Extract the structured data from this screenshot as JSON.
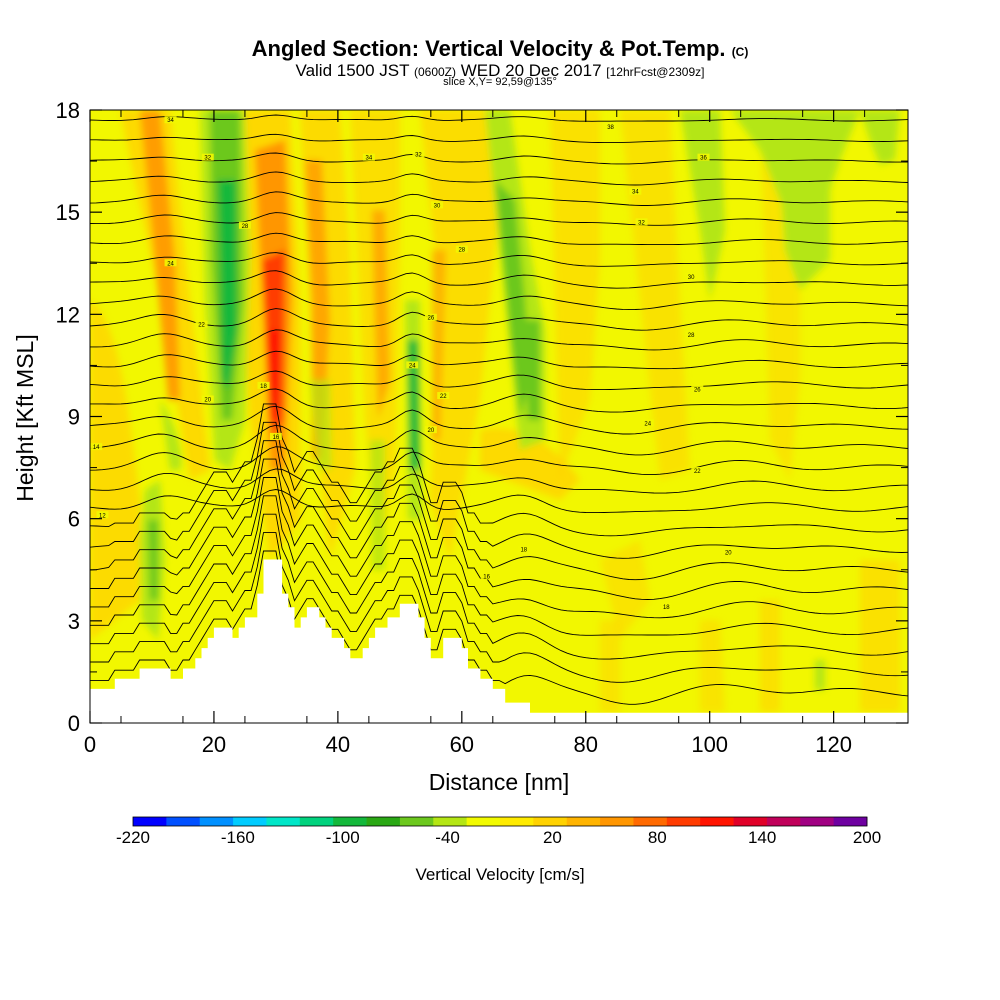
{
  "title": {
    "main": "Angled Section: Vertical Velocity & Pot.Temp.",
    "main_unit": "(C)",
    "valid_prefix": "Valid 1500 JST",
    "valid_utc": "(0600Z)",
    "valid_date": "WED 20 Dec 2017",
    "forecast": "[12hrFcst@2309z]",
    "slice": "slice X,Y= 92,59@135°"
  },
  "chart_data": {
    "type": "heatmap",
    "xlabel": "Distance [nm]",
    "ylabel": "Height [Kft MSL]",
    "xlim": [
      0,
      132
    ],
    "ylim": [
      0,
      18
    ],
    "x_ticks": [
      0,
      20,
      40,
      60,
      80,
      100,
      120
    ],
    "y_ticks": [
      0,
      3,
      6,
      9,
      12,
      15,
      18
    ],
    "colorbar": {
      "title": "Vertical Velocity [cm/s]",
      "labels": [
        "-220",
        "-160",
        "-100",
        "-40",
        "20",
        "80",
        "140",
        "200"
      ],
      "colors": [
        "#0000ff",
        "#0050ff",
        "#0090ff",
        "#00ccff",
        "#00e6c8",
        "#00d27d",
        "#13b83b",
        "#2aa814",
        "#6cc81e",
        "#b4e614",
        "#f2fb00",
        "#ffeb00",
        "#ffd200",
        "#ffb400",
        "#ff9600",
        "#ff6a00",
        "#ff3c00",
        "#ff1400",
        "#e00028",
        "#c0005a",
        "#a00082",
        "#6e00a0"
      ]
    },
    "background_color": "#f2f700",
    "terrain_profile": [
      [
        0,
        1.0
      ],
      [
        4,
        1.0
      ],
      [
        4,
        1.3
      ],
      [
        8,
        1.3
      ],
      [
        8,
        1.6
      ],
      [
        13,
        1.6
      ],
      [
        13,
        1.3
      ],
      [
        15,
        1.3
      ],
      [
        15,
        1.6
      ],
      [
        17,
        1.6
      ],
      [
        17,
        1.9
      ],
      [
        18,
        1.9
      ],
      [
        18,
        2.2
      ],
      [
        19,
        2.2
      ],
      [
        19,
        2.5
      ],
      [
        20,
        2.5
      ],
      [
        20,
        2.8
      ],
      [
        23,
        2.8
      ],
      [
        23,
        2.5
      ],
      [
        24,
        2.5
      ],
      [
        24,
        2.8
      ],
      [
        25,
        2.8
      ],
      [
        25,
        3.1
      ],
      [
        27,
        3.1
      ],
      [
        27,
        3.8
      ],
      [
        28,
        3.8
      ],
      [
        28,
        4.8
      ],
      [
        31,
        4.8
      ],
      [
        31,
        3.8
      ],
      [
        32,
        3.8
      ],
      [
        32,
        3.4
      ],
      [
        33,
        3.4
      ],
      [
        33,
        2.8
      ],
      [
        34,
        2.8
      ],
      [
        34,
        3.1
      ],
      [
        35,
        3.1
      ],
      [
        35,
        3.4
      ],
      [
        37,
        3.4
      ],
      [
        37,
        3.1
      ],
      [
        38,
        3.1
      ],
      [
        38,
        2.8
      ],
      [
        39,
        2.8
      ],
      [
        39,
        2.5
      ],
      [
        41,
        2.5
      ],
      [
        41,
        2.2
      ],
      [
        42,
        2.2
      ],
      [
        42,
        1.9
      ],
      [
        44,
        1.9
      ],
      [
        44,
        2.2
      ],
      [
        45,
        2.2
      ],
      [
        45,
        2.5
      ],
      [
        46,
        2.5
      ],
      [
        46,
        2.8
      ],
      [
        48,
        2.8
      ],
      [
        48,
        3.1
      ],
      [
        50,
        3.1
      ],
      [
        50,
        3.5
      ],
      [
        53,
        3.5
      ],
      [
        53,
        3.1
      ],
      [
        54,
        3.1
      ],
      [
        54,
        2.5
      ],
      [
        55,
        2.5
      ],
      [
        55,
        1.9
      ],
      [
        57,
        1.9
      ],
      [
        57,
        2.5
      ],
      [
        60,
        2.5
      ],
      [
        60,
        2.2
      ],
      [
        61,
        2.2
      ],
      [
        61,
        1.6
      ],
      [
        63,
        1.6
      ],
      [
        63,
        1.3
      ],
      [
        65,
        1.3
      ],
      [
        65,
        1.0
      ],
      [
        67,
        1.0
      ],
      [
        67,
        0.6
      ],
      [
        71,
        0.6
      ],
      [
        71,
        0.3
      ],
      [
        132,
        0.3
      ]
    ],
    "contour_labels": [
      {
        "x": 13,
        "y": 17.7,
        "text": "34"
      },
      {
        "x": 19,
        "y": 16.6,
        "text": "32"
      },
      {
        "x": 25,
        "y": 14.6,
        "text": "28"
      },
      {
        "x": 13,
        "y": 13.5,
        "text": "24"
      },
      {
        "x": 18,
        "y": 11.7,
        "text": "22"
      },
      {
        "x": 19,
        "y": 9.5,
        "text": "20"
      },
      {
        "x": 28,
        "y": 9.9,
        "text": "18"
      },
      {
        "x": 30,
        "y": 8.4,
        "text": "16"
      },
      {
        "x": 1,
        "y": 8.1,
        "text": "14"
      },
      {
        "x": 2,
        "y": 6.1,
        "text": "12"
      },
      {
        "x": 45,
        "y": 16.6,
        "text": "34"
      },
      {
        "x": 53,
        "y": 16.7,
        "text": "32"
      },
      {
        "x": 56,
        "y": 15.2,
        "text": "30"
      },
      {
        "x": 60,
        "y": 13.9,
        "text": "28"
      },
      {
        "x": 55,
        "y": 11.9,
        "text": "26"
      },
      {
        "x": 52,
        "y": 10.5,
        "text": "24"
      },
      {
        "x": 57,
        "y": 9.6,
        "text": "22"
      },
      {
        "x": 55,
        "y": 8.6,
        "text": "20"
      },
      {
        "x": 70,
        "y": 5.1,
        "text": "18"
      },
      {
        "x": 64,
        "y": 4.3,
        "text": "16"
      },
      {
        "x": 84,
        "y": 17.5,
        "text": "38"
      },
      {
        "x": 99,
        "y": 16.6,
        "text": "36"
      },
      {
        "x": 88,
        "y": 15.6,
        "text": "34"
      },
      {
        "x": 89,
        "y": 14.7,
        "text": "32"
      },
      {
        "x": 97,
        "y": 13.1,
        "text": "30"
      },
      {
        "x": 97,
        "y": 11.4,
        "text": "28"
      },
      {
        "x": 98,
        "y": 9.8,
        "text": "26"
      },
      {
        "x": 90,
        "y": 8.8,
        "text": "24"
      },
      {
        "x": 98,
        "y": 7.4,
        "text": "22"
      },
      {
        "x": 103,
        "y": 5.0,
        "text": "20"
      },
      {
        "x": 93,
        "y": 3.4,
        "text": "18"
      }
    ]
  }
}
